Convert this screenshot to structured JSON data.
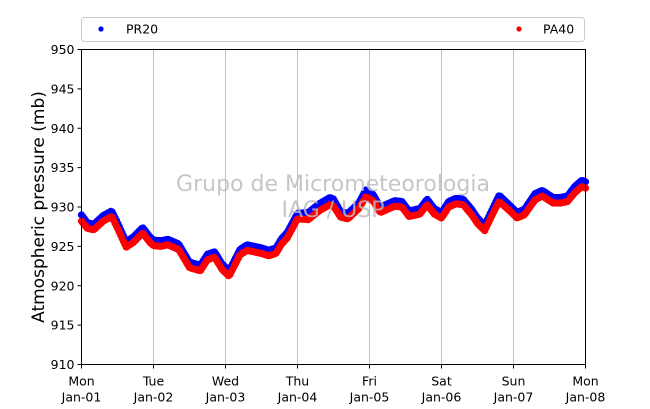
{
  "watermark": {
    "line1": "Grupo de Micrometeorologia",
    "line2": "IAG / USP"
  },
  "chart_data": {
    "type": "scatter",
    "ylabel": "Atmospheric pressure (mb)",
    "ylim": [
      910,
      950
    ],
    "yticks": [
      910,
      915,
      920,
      925,
      930,
      935,
      940,
      945,
      950
    ],
    "xlim": [
      0,
      7
    ],
    "xticks": [
      {
        "pos": 0,
        "day": "Mon",
        "date": "Jan-01"
      },
      {
        "pos": 1,
        "day": "Tue",
        "date": "Jan-02"
      },
      {
        "pos": 2,
        "day": "Wed",
        "date": "Jan-03"
      },
      {
        "pos": 3,
        "day": "Thu",
        "date": "Jan-04"
      },
      {
        "pos": 4,
        "day": "Fri",
        "date": "Jan-05"
      },
      {
        "pos": 5,
        "day": "Sat",
        "date": "Jan-06"
      },
      {
        "pos": 6,
        "day": "Sun",
        "date": "Jan-07"
      },
      {
        "pos": 7,
        "day": "Mon",
        "date": "Jan-08"
      }
    ],
    "grid": "vertical",
    "legend_position": "top, above plot",
    "series": [
      {
        "name": "PR20",
        "color": "#0000ff",
        "x": [
          0,
          0.08,
          0.17,
          0.3,
          0.42,
          0.5,
          0.62,
          0.72,
          0.85,
          0.95,
          1.0,
          1.1,
          1.2,
          1.35,
          1.5,
          1.65,
          1.75,
          1.85,
          1.95,
          2.05,
          2.1,
          2.2,
          2.3,
          2.5,
          2.6,
          2.7,
          2.78,
          2.86,
          3.0,
          3.15,
          3.3,
          3.45,
          3.5,
          3.6,
          3.7,
          3.85,
          3.95,
          4.05,
          4.15,
          4.25,
          4.35,
          4.45,
          4.55,
          4.7,
          4.8,
          4.9,
          5.0,
          5.1,
          5.2,
          5.3,
          5.42,
          5.5,
          5.6,
          5.7,
          5.8,
          5.95,
          6.05,
          6.15,
          6.3,
          6.4,
          6.55,
          6.65,
          6.75,
          6.85,
          6.95,
          7.0
        ],
        "y": [
          929.0,
          928.0,
          927.8,
          928.9,
          929.5,
          928.0,
          925.6,
          926.2,
          927.4,
          926.2,
          925.8,
          925.7,
          925.9,
          925.3,
          923.0,
          922.6,
          924.0,
          924.3,
          922.8,
          921.9,
          922.8,
          924.6,
          925.2,
          924.8,
          924.5,
          924.8,
          926.0,
          926.8,
          929.2,
          929.3,
          930.4,
          931.2,
          931.0,
          929.4,
          929.2,
          930.5,
          932.2,
          931.6,
          930.0,
          930.4,
          930.8,
          930.7,
          929.5,
          929.8,
          931.0,
          929.8,
          929.3,
          930.7,
          931.1,
          931.0,
          929.7,
          928.6,
          927.7,
          929.6,
          931.5,
          930.2,
          929.3,
          929.7,
          931.7,
          932.1,
          931.2,
          931.2,
          931.4,
          932.6,
          933.4,
          933.2
        ]
      },
      {
        "name": "PA40",
        "color": "#ff0000",
        "x": [
          0,
          0.08,
          0.17,
          0.3,
          0.42,
          0.5,
          0.62,
          0.72,
          0.85,
          0.95,
          1.0,
          1.1,
          1.2,
          1.35,
          1.5,
          1.65,
          1.75,
          1.85,
          1.95,
          2.05,
          2.1,
          2.2,
          2.3,
          2.5,
          2.6,
          2.7,
          2.78,
          2.86,
          3.0,
          3.15,
          3.3,
          3.45,
          3.5,
          3.6,
          3.7,
          3.85,
          3.95,
          4.05,
          4.15,
          4.25,
          4.35,
          4.45,
          4.55,
          4.7,
          4.8,
          4.9,
          5.0,
          5.1,
          5.2,
          5.3,
          5.42,
          5.5,
          5.6,
          5.7,
          5.8,
          5.95,
          6.05,
          6.15,
          6.3,
          6.4,
          6.55,
          6.65,
          6.75,
          6.85,
          6.95,
          7.0
        ],
        "y": [
          928.2,
          927.3,
          927.1,
          928.2,
          928.8,
          927.3,
          924.9,
          925.5,
          926.7,
          925.5,
          925.1,
          925.0,
          925.2,
          924.6,
          922.3,
          921.9,
          923.3,
          923.6,
          922.1,
          921.2,
          922.1,
          923.9,
          924.5,
          924.1,
          923.8,
          924.1,
          925.3,
          926.1,
          928.5,
          928.4,
          929.5,
          930.3,
          930.1,
          928.7,
          928.5,
          929.8,
          931.3,
          930.8,
          929.3,
          929.7,
          930.1,
          930.0,
          928.8,
          929.1,
          930.3,
          929.1,
          928.6,
          930.0,
          930.4,
          930.3,
          929.0,
          927.9,
          927.0,
          928.9,
          930.7,
          929.5,
          928.6,
          929.0,
          930.9,
          931.4,
          930.5,
          930.5,
          930.7,
          931.8,
          932.6,
          932.4
        ]
      }
    ]
  }
}
